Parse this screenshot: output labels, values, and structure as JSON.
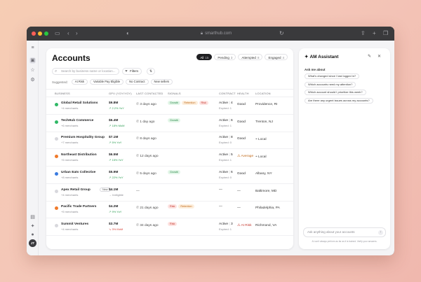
{
  "browser": {
    "url": "smarthub.com"
  },
  "user": {
    "initials": "JT"
  },
  "accounts": {
    "title": "Accounts",
    "filters": [
      {
        "label": "All",
        "count": "15",
        "active": true
      },
      {
        "label": "Pending",
        "count": "3",
        "active": false
      },
      {
        "label": "Attempted",
        "count": "8",
        "active": false
      },
      {
        "label": "Engaged",
        "count": "4",
        "active": false
      }
    ],
    "search_placeholder": "Search by business name or location...",
    "filters_button": "Filters",
    "suggested_label": "Suggested:",
    "suggested": [
      "At Risk",
      "Variable Pay Eligible",
      "No Contract",
      "New sellers"
    ],
    "columns": {
      "business": "BUSINESS",
      "gpv": "GPV (YOY/YOY)",
      "last_contacted": "LAST CONTACTED",
      "signals": "SIGNALS",
      "contract": "CONTRACT",
      "health": "HEALTH",
      "location": "LOCATION"
    },
    "rows": [
      {
        "name": "Global Retail Solutions",
        "merchants": "+4 merchants",
        "dot": "#2fb866",
        "gpv": "$9.8M",
        "change": "↗ 2.2% YoY",
        "trend": "up",
        "contacted": "3 days ago",
        "signals": [
          [
            "Growth",
            "growth"
          ],
          [
            "Retention",
            "retention"
          ],
          [
            "Risk",
            "risk"
          ]
        ],
        "contract": "Active",
        "contract_n": "4",
        "contract_sub": "Expired: 1",
        "health": "Good",
        "health_kind": "good",
        "location": "Providence, RI"
      },
      {
        "name": "TechHub Commerce",
        "merchants": "+6 merchants",
        "dot": "#2fb866",
        "gpv": "$6.4M",
        "change": "↗ 18% MoM",
        "trend": "up",
        "contacted": "1 day ago",
        "signals": [
          [
            "Growth",
            "growth"
          ]
        ],
        "contract": "Active",
        "contract_n": "6",
        "contract_sub": "Expired: 1",
        "health": "Good",
        "health_kind": "good",
        "location": "Trenton, NJ"
      },
      {
        "name": "Premium Hospitality Group",
        "merchants": "+7 merchants",
        "dot": "#d8d8dd",
        "gpv": "$7.1M",
        "change": "↗ 5% YoY",
        "trend": "up",
        "contacted": "8 days ago",
        "signals": [],
        "contract": "Active",
        "contract_n": "8",
        "contract_sub": "Expired: 0",
        "health": "Good",
        "health_kind": "good",
        "location": "Local"
      },
      {
        "name": "Northeast Distribution",
        "merchants": "+5 merchants",
        "dot": "#f07a2a",
        "gpv": "$6.5M",
        "change": "↗ 15% YoY",
        "trend": "up",
        "contacted": "12 days ago",
        "signals": [],
        "contract": "Active",
        "contract_n": "5",
        "contract_sub": "Expired: 1",
        "health": "Average",
        "health_kind": "average",
        "location": "Local"
      },
      {
        "name": "Urban Eats Collective",
        "merchants": "+8 merchants",
        "dot": "#3a7be0",
        "gpv": "$5.9M",
        "change": "↗ 22% YoY",
        "trend": "up",
        "contacted": "5 days ago",
        "signals": [
          [
            "Growth",
            "growth"
          ]
        ],
        "contract": "Active",
        "contract_n": "6",
        "contract_sub": "Expired: 0",
        "health": "Good",
        "health_kind": "good",
        "location": "Albany, NY"
      },
      {
        "name": "Apex Retail Group",
        "merchants": "+4 merchants",
        "dot": "#d8d8dd",
        "is_new": true,
        "new_label": "New",
        "gpv": "$4.1M",
        "change": "→ Ineligible",
        "trend": "neutral",
        "contacted": "—",
        "signals": [],
        "contract": "—",
        "contract_n": "",
        "contract_sub": "",
        "health": "—",
        "health_kind": "none",
        "location": "Baltimore, MD"
      },
      {
        "name": "Pacific Trade Partners",
        "merchants": "+5 merchants",
        "dot": "#f07a2a",
        "gpv": "$4.2M",
        "change": "↗ 9% YoY",
        "trend": "up",
        "contacted": "21 days ago",
        "signals": [
          [
            "Risk",
            "risk"
          ],
          [
            "Retention",
            "retention"
          ]
        ],
        "contract": "—",
        "contract_n": "",
        "contract_sub": "",
        "health": "—",
        "health_kind": "none",
        "location": "Philadelphia, PA"
      },
      {
        "name": "Summit Ventures",
        "merchants": "+4 merchants",
        "dot": "#d8d8dd",
        "gpv": "$3.7M",
        "change": "↘ 3% MoM",
        "trend": "down",
        "contacted": "34 days ago",
        "signals": [
          [
            "Risk",
            "risk"
          ]
        ],
        "contract": "Active",
        "contract_n": "3",
        "contract_sub": "Expired: 1",
        "health": "At Risk",
        "health_kind": "risk",
        "location": "Richmond, VA"
      }
    ]
  },
  "assistant": {
    "title": "AM Assistant",
    "ask_label": "Ask me about",
    "questions": [
      "What's changed since I last logged in?",
      "Which accounts need my attention?",
      "Which account should I prioritize this week?",
      "Are there any urgent issues across my accounts?"
    ],
    "input_placeholder": "Ask anything about your accounts",
    "disclaimer": "AI can't always perform as far as it is trained. Verify your answers."
  },
  "colors": {
    "accent_dark": "#1f1f22",
    "growth": "#2b8a4a",
    "retention": "#c06a1a",
    "risk": "#c4372d"
  }
}
